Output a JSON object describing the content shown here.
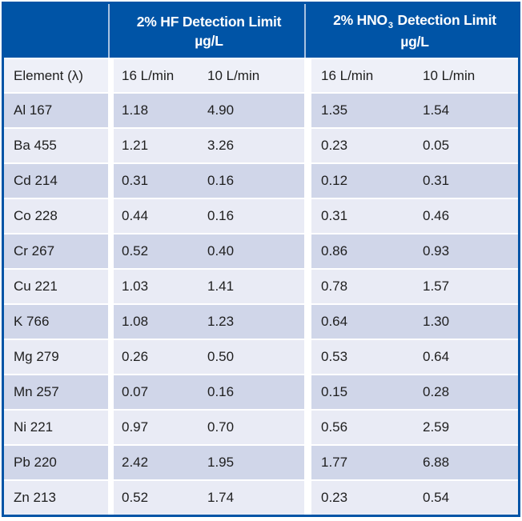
{
  "header": {
    "hf": {
      "line1": "2% HF Detection Limit",
      "unit": "µg/L"
    },
    "hno3": {
      "prefix": "2% HNO",
      "sub": "3",
      "suffix": " Detection Limit",
      "unit": "µg/L"
    }
  },
  "subheader": {
    "element": "Element (λ)",
    "hf16": "16 L/min",
    "hf10": "10 L/min",
    "hn16": "16 L/min",
    "hn10": "10 L/min"
  },
  "colors": {
    "header_bg": "#0054a6",
    "header_text": "#ffffff",
    "header_divider": "#a9c3e0",
    "row_dark": "#d0d6e9",
    "row_light": "#e9ebf5",
    "subheader_bg": "#eef0f8",
    "outer_border": "#0054a6",
    "body_text": "#1e1e1e",
    "gap": "#ffffff"
  },
  "chart_data": {
    "type": "table",
    "title": "",
    "column_groups": [
      "2% HF Detection Limit µg/L",
      "2% HNO3 Detection Limit µg/L"
    ],
    "columns": [
      "Element (λ)",
      "HF 16 L/min",
      "HF 10 L/min",
      "HNO3 16 L/min",
      "HNO3 10 L/min"
    ],
    "rows": [
      {
        "element": "Al 167",
        "hf16": "1.18",
        "hf10": "4.90",
        "hn16": "1.35",
        "hn10": "1.54"
      },
      {
        "element": "Ba 455",
        "hf16": "1.21",
        "hf10": "3.26",
        "hn16": "0.23",
        "hn10": "0.05"
      },
      {
        "element": "Cd 214",
        "hf16": "0.31",
        "hf10": "0.16",
        "hn16": "0.12",
        "hn10": "0.31"
      },
      {
        "element": "Co 228",
        "hf16": "0.44",
        "hf10": "0.16",
        "hn16": "0.31",
        "hn10": "0.46"
      },
      {
        "element": "Cr 267",
        "hf16": "0.52",
        "hf10": "0.40",
        "hn16": "0.86",
        "hn10": "0.93"
      },
      {
        "element": "Cu 221",
        "hf16": "1.03",
        "hf10": "1.41",
        "hn16": "0.78",
        "hn10": "1.57"
      },
      {
        "element": "K 766",
        "hf16": "1.08",
        "hf10": "1.23",
        "hn16": "0.64",
        "hn10": "1.30"
      },
      {
        "element": "Mg 279",
        "hf16": "0.26",
        "hf10": "0.50",
        "hn16": "0.53",
        "hn10": "0.64"
      },
      {
        "element": "Mn 257",
        "hf16": "0.07",
        "hf10": "0.16",
        "hn16": "0.15",
        "hn10": "0.28"
      },
      {
        "element": "Ni 221",
        "hf16": "0.97",
        "hf10": "0.70",
        "hn16": "0.56",
        "hn10": "2.59"
      },
      {
        "element": "Pb 220",
        "hf16": "2.42",
        "hf10": "1.95",
        "hn16": "1.77",
        "hn10": "6.88"
      },
      {
        "element": "Zn 213",
        "hf16": "0.52",
        "hf10": "1.74",
        "hn16": "0.23",
        "hn10": "0.54"
      }
    ]
  }
}
